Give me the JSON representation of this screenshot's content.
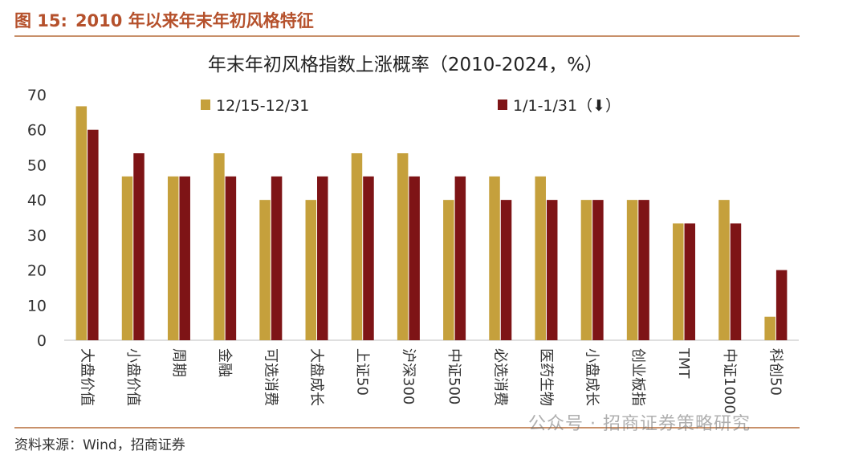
{
  "figure": {
    "label": "图 15:",
    "heading": "2010 年以来年末年初风格特征",
    "source": "资料来源：Wind，招商证券",
    "watermark": "公众号 · 招商证券策略研究"
  },
  "colors": {
    "series1": "#c5a03c",
    "series2": "#7e1416",
    "accent": "#b5512c"
  },
  "chart_data": {
    "type": "bar",
    "title": "年末年初风格指数上涨概率（2010-2024，%）",
    "xlabel": "",
    "ylabel": "",
    "ylim": [
      0,
      70
    ],
    "yticks": [
      0,
      10,
      20,
      30,
      40,
      50,
      60,
      70
    ],
    "grid": false,
    "legend_position": "top",
    "categories": [
      "大盘价值",
      "小盘价值",
      "周期",
      "金融",
      "可选消费",
      "大盘成长",
      "上证50",
      "沪深300",
      "中证500",
      "必选消费",
      "医药生物",
      "小盘成长",
      "创业板指",
      "TMT",
      "中证1000",
      "科创50"
    ],
    "series": [
      {
        "name": "12/15-12/31",
        "values": [
          66.7,
          46.7,
          46.7,
          53.3,
          40.0,
          40.0,
          53.3,
          53.3,
          40.0,
          46.7,
          46.7,
          40.0,
          40.0,
          33.3,
          40.0,
          6.7
        ]
      },
      {
        "name": "1/1-1/31（⬇）",
        "values": [
          60.0,
          53.3,
          46.7,
          46.7,
          46.7,
          46.7,
          46.7,
          46.7,
          46.7,
          40.0,
          40.0,
          40.0,
          40.0,
          33.3,
          33.3,
          20.0
        ]
      }
    ]
  }
}
